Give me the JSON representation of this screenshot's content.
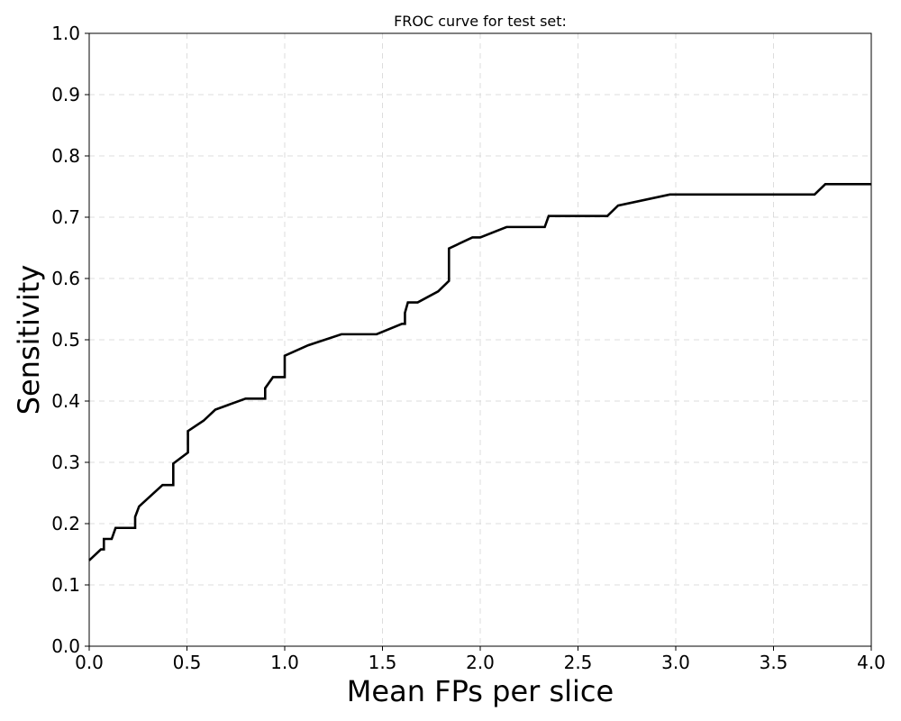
{
  "chart_data": {
    "type": "line",
    "title": "FROC curve for test set:",
    "xlabel": "Mean FPs per slice",
    "ylabel": "Sensitivity",
    "xlim": [
      0.0,
      4.0
    ],
    "ylim": [
      0.0,
      1.0
    ],
    "grid": true,
    "x_ticks": [
      0.0,
      0.5,
      1.0,
      1.5,
      2.0,
      2.5,
      3.0,
      3.5,
      4.0
    ],
    "x_tick_labels": [
      "0.0",
      "0.5",
      "1.0",
      "1.5",
      "2.0",
      "2.5",
      "3.0",
      "3.5",
      "4.0"
    ],
    "y_ticks": [
      0.0,
      0.1,
      0.2,
      0.3,
      0.4,
      0.5,
      0.6,
      0.7,
      0.8,
      0.9,
      1.0
    ],
    "y_tick_labels": [
      "0.0",
      "0.1",
      "0.2",
      "0.3",
      "0.4",
      "0.5",
      "0.6",
      "0.7",
      "0.8",
      "0.9",
      "1.0"
    ],
    "series": [
      {
        "color": "#000000",
        "x": [
          0.0,
          0.06,
          0.075,
          0.075,
          0.115,
          0.135,
          0.135,
          0.235,
          0.235,
          0.255,
          0.375,
          0.43,
          0.43,
          0.505,
          0.505,
          0.585,
          0.645,
          0.8,
          0.9,
          0.9,
          0.94,
          1.0,
          1.0,
          1.12,
          1.29,
          1.47,
          1.6,
          1.615,
          1.615,
          1.63,
          1.68,
          1.785,
          1.84,
          1.84,
          1.96,
          2.0,
          2.135,
          2.33,
          2.35,
          2.35,
          2.65,
          2.705,
          2.97,
          3.71,
          3.765,
          4.0
        ],
        "y": [
          0.14,
          0.158,
          0.158,
          0.175,
          0.175,
          0.193,
          0.193,
          0.193,
          0.211,
          0.228,
          0.263,
          0.263,
          0.298,
          0.316,
          0.351,
          0.368,
          0.386,
          0.404,
          0.404,
          0.421,
          0.439,
          0.439,
          0.474,
          0.491,
          0.509,
          0.509,
          0.526,
          0.526,
          0.544,
          0.561,
          0.561,
          0.579,
          0.596,
          0.649,
          0.667,
          0.667,
          0.684,
          0.684,
          0.702,
          0.702,
          0.702,
          0.719,
          0.737,
          0.737,
          0.754,
          0.754
        ]
      }
    ]
  }
}
